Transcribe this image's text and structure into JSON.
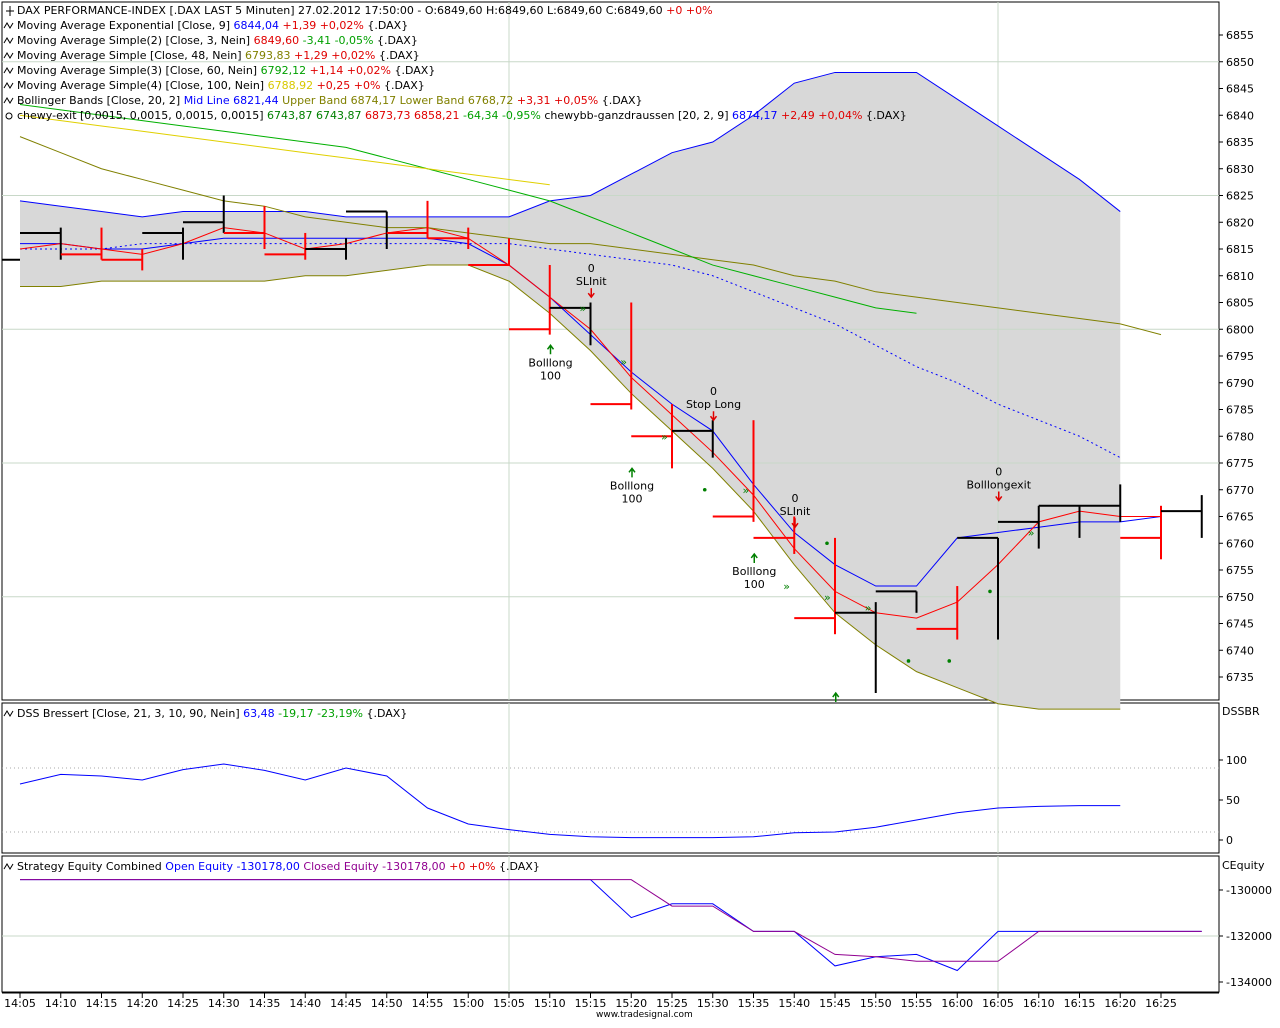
{
  "footer": {
    "credit": "www.tradesignal.com"
  },
  "panels": {
    "price": {
      "legend": [
        {
          "icon": "cursor-icon",
          "parts": [
            {
              "t": "DAX PERFORMANCE-INDEX [.DAX LAST 5 Minuten] 27.02.2012 17:50:00 - O:6849,60 H:6849,60 L:6849,60 C:6849,60 ",
              "c": "#000000"
            },
            {
              "t": "+0 +0%",
              "c": "#e00000"
            }
          ]
        },
        {
          "icon": "wave-icon",
          "parts": [
            {
              "t": "Moving Average Exponential [Close, 9] ",
              "c": "#000000"
            },
            {
              "t": "6844,04",
              "c": "#0000ff"
            },
            {
              "t": " +1,39 +0,02% ",
              "c": "#e00000"
            },
            {
              "t": "{.DAX}",
              "c": "#000000"
            }
          ]
        },
        {
          "icon": "wave-icon",
          "parts": [
            {
              "t": "Moving Average Simple(2) [Close, 3, Nein] ",
              "c": "#000000"
            },
            {
              "t": "6849,60",
              "c": "#e00000"
            },
            {
              "t": " -3,41 -0,05% ",
              "c": "#00a000"
            },
            {
              "t": "{.DAX}",
              "c": "#000000"
            }
          ]
        },
        {
          "icon": "wave-icon",
          "parts": [
            {
              "t": "Moving Average Simple [Close, 48, Nein] ",
              "c": "#000000"
            },
            {
              "t": "6793,83",
              "c": "#808000"
            },
            {
              "t": " +1,29 +0,02% ",
              "c": "#e00000"
            },
            {
              "t": "{.DAX}",
              "c": "#000000"
            }
          ]
        },
        {
          "icon": "wave-icon",
          "parts": [
            {
              "t": "Moving Average Simple(3) [Close, 60, Nein] ",
              "c": "#000000"
            },
            {
              "t": "6792,12",
              "c": "#00a000"
            },
            {
              "t": " +1,14 +0,02% ",
              "c": "#e00000"
            },
            {
              "t": "{.DAX}",
              "c": "#000000"
            }
          ]
        },
        {
          "icon": "wave-icon",
          "parts": [
            {
              "t": "Moving Average Simple(4) [Close, 100, Nein] ",
              "c": "#000000"
            },
            {
              "t": "6788,92",
              "c": "#d8c800"
            },
            {
              "t": " +0,25 +0% ",
              "c": "#e00000"
            },
            {
              "t": "{.DAX}",
              "c": "#000000"
            }
          ]
        },
        {
          "icon": "wave-icon",
          "parts": [
            {
              "t": "Bollinger Bands [Close, 20, 2] ",
              "c": "#000000"
            },
            {
              "t": "Mid Line 6821,44",
              "c": "#0000ff"
            },
            {
              "t": " Upper Band 6874,17",
              "c": "#808000"
            },
            {
              "t": " Lower Band 6768,72",
              "c": "#808000"
            },
            {
              "t": " +3,31 +0,05% ",
              "c": "#e00000"
            },
            {
              "t": "{.DAX}",
              "c": "#000000"
            }
          ]
        },
        {
          "icon": "strategy-icon",
          "parts": [
            {
              "t": "chewy-exit [0,0015, 0,0015, 0,0015, 0,0015] ",
              "c": "#000000"
            },
            {
              "t": "6743,87 6743,87",
              "c": "#008000"
            },
            {
              "t": " 6873,73 6858,21",
              "c": "#e00000"
            },
            {
              "t": " -64,34 -0,95%",
              "c": "#00a000"
            },
            {
              "t": "     ",
              "c": "#000000"
            },
            {
              "t": "chewybb-ganzdraussen [20, 2, 9] ",
              "c": "#000000"
            },
            {
              "t": "6874,17",
              "c": "#0000ff"
            },
            {
              "t": " +2,49 +0,04% ",
              "c": "#e00000"
            },
            {
              "t": "{.DAX}",
              "c": "#000000"
            }
          ]
        }
      ]
    },
    "dss": {
      "label": "DSSBR",
      "legend": [
        {
          "icon": "wave-icon",
          "parts": [
            {
              "t": "DSS Bressert [Close, 21, 3, 10, 90, Nein] ",
              "c": "#000000"
            },
            {
              "t": "63,48",
              "c": "#0000ff"
            },
            {
              "t": " -19,17 -23,19% ",
              "c": "#00a000"
            },
            {
              "t": "{.DAX}",
              "c": "#000000"
            }
          ]
        }
      ]
    },
    "equity": {
      "label": "CEquity",
      "legend": [
        {
          "icon": "wave-icon",
          "parts": [
            {
              "t": "Strategy Equity Combined ",
              "c": "#000000"
            },
            {
              "t": "Open Equity -130178,00",
              "c": "#0000ff"
            },
            {
              "t": " Closed Equity -130178,00",
              "c": "#900090"
            },
            {
              "t": " +0 +0% ",
              "c": "#e00000"
            },
            {
              "t": "{.DAX}",
              "c": "#000000"
            }
          ]
        }
      ]
    }
  },
  "chart_data": [
    {
      "type": "line",
      "panel": "price",
      "ylim": [
        6732,
        6858
      ],
      "yticks": [
        6735,
        6740,
        6745,
        6750,
        6755,
        6760,
        6765,
        6770,
        6775,
        6780,
        6785,
        6790,
        6795,
        6800,
        6805,
        6810,
        6815,
        6820,
        6825,
        6830,
        6835,
        6840,
        6845,
        6850,
        6855
      ],
      "x_labels": [
        "14:05",
        "14:10",
        "14:15",
        "14:20",
        "14:25",
        "14:30",
        "14:35",
        "14:40",
        "14:45",
        "14:50",
        "14:55",
        "15:00",
        "15:05",
        "15:10",
        "15:15",
        "15:20",
        "15:25",
        "15:30",
        "15:35",
        "15:40",
        "15:45",
        "15:50",
        "15:55",
        "16:00",
        "16:05",
        "16:10",
        "16:15",
        "16:20",
        "16:25"
      ],
      "bars": [
        {
          "o": 6813,
          "h": 6813,
          "l": 6813,
          "c": 6813
        },
        {
          "o": 6813,
          "h": 6819,
          "l": 6813,
          "c": 6818
        },
        {
          "o": 6818,
          "h": 6819,
          "l": 6813,
          "c": 6814
        },
        {
          "o": 6814,
          "h": 6815,
          "l": 6811,
          "c": 6813
        },
        {
          "o": 6813,
          "h": 6819,
          "l": 6813,
          "c": 6818
        },
        {
          "o": 6818,
          "h": 6825,
          "l": 6818,
          "c": 6820
        },
        {
          "o": 6820,
          "h": 6823,
          "l": 6815,
          "c": 6818
        },
        {
          "o": 6818,
          "h": 6818,
          "l": 6813,
          "c": 6814
        },
        {
          "o": 6814,
          "h": 6817,
          "l": 6813,
          "c": 6815
        },
        {
          "o": 6815,
          "h": 6822,
          "l": 6815,
          "c": 6822
        },
        {
          "o": 6822,
          "h": 6824,
          "l": 6817,
          "c": 6818
        },
        {
          "o": 6818,
          "h": 6819,
          "l": 6815,
          "c": 6817
        },
        {
          "o": 6817,
          "h": 6817,
          "l": 6812,
          "c": 6812
        },
        {
          "o": 6812,
          "h": 6812,
          "l": 6799,
          "c": 6800
        },
        {
          "o": 6800,
          "h": 6805,
          "l": 6797,
          "c": 6804
        },
        {
          "o": 6804,
          "h": 6805,
          "l": 6785,
          "c": 6786
        },
        {
          "o": 6786,
          "h": 6786,
          "l": 6774,
          "c": 6780
        },
        {
          "o": 6780,
          "h": 6783,
          "l": 6776,
          "c": 6781
        },
        {
          "o": 6781,
          "h": 6783,
          "l": 6764,
          "c": 6765
        },
        {
          "o": 6765,
          "h": 6765,
          "l": 6758,
          "c": 6761
        },
        {
          "o": 6761,
          "h": 6761,
          "l": 6743,
          "c": 6746
        },
        {
          "o": 6746,
          "h": 6749,
          "l": 6732,
          "c": 6747
        },
        {
          "o": 6747,
          "h": 6751,
          "l": 6747,
          "c": 6751
        },
        {
          "o": 6751,
          "h": 6752,
          "l": 6742,
          "c": 6744
        },
        {
          "o": 6744,
          "h": 6761,
          "l": 6742,
          "c": 6761
        },
        {
          "o": 6761,
          "h": 6767,
          "l": 6759,
          "c": 6764
        },
        {
          "o": 6764,
          "h": 6767,
          "l": 6761,
          "c": 6767
        },
        {
          "o": 6767,
          "h": 6771,
          "l": 6764,
          "c": 6767
        },
        {
          "o": 6767,
          "h": 6767,
          "l": 6757,
          "c": 6761
        },
        {
          "o": 6761,
          "h": 6769,
          "l": 6761,
          "c": 6766
        }
      ],
      "series": [
        {
          "key": "upper",
          "color": "#0000ff",
          "values": [
            6824,
            6823,
            6822,
            6821,
            6822,
            6822,
            6822,
            6822,
            6821,
            6821,
            6821,
            6821,
            6821,
            6824,
            6825,
            6829,
            6833,
            6835,
            6840,
            6846,
            6848,
            6848,
            6848,
            6843,
            6838,
            6833,
            6828,
            6822
          ]
        },
        {
          "key": "lower",
          "color": "#808000",
          "values": [
            6808,
            6808,
            6809,
            6809,
            6809,
            6809,
            6809,
            6810,
            6810,
            6811,
            6812,
            6812,
            6809,
            6803,
            6796,
            6788,
            6781,
            6774,
            6766,
            6756,
            6747,
            6741,
            6736,
            6733,
            6730,
            6729,
            6729,
            6729
          ]
        },
        {
          "key": "mid",
          "color": "#0000ff",
          "dash": "2,3",
          "values": [
            6815,
            6815,
            6815,
            6816,
            6816,
            6816,
            6816,
            6816,
            6816,
            6816,
            6816,
            6816,
            6816,
            6815,
            6814,
            6813,
            6812,
            6810,
            6807,
            6804,
            6801,
            6797,
            6793,
            6790,
            6786,
            6783,
            6780,
            6776
          ]
        },
        {
          "key": "ema",
          "color": "#0000ff",
          "values": [
            6816,
            6816,
            6815,
            6815,
            6816,
            6817,
            6817,
            6817,
            6817,
            6817,
            6817,
            6816,
            6812,
            6806,
            6799,
            6792,
            6786,
            6781,
            6771,
            6762,
            6756,
            6752,
            6752,
            6761,
            6762,
            6763,
            6764,
            6764,
            6765
          ]
        },
        {
          "key": "sma3",
          "color": "#ff0000",
          "values": [
            6815,
            6816,
            6815,
            6814,
            6816,
            6819,
            6818,
            6815,
            6816,
            6818,
            6819,
            6817,
            6812,
            6806,
            6800,
            6791,
            6784,
            6777,
            6769,
            6759,
            6751,
            6747,
            6746,
            6749,
            6756,
            6764,
            6766,
            6765,
            6765
          ]
        },
        {
          "key": "sma48",
          "color": "#808000",
          "values": [
            6836,
            6833,
            6830,
            6828,
            6826,
            6824,
            6823,
            6821,
            6820,
            6819,
            6819,
            6818,
            6817,
            6816,
            6816,
            6815,
            6814,
            6813,
            6812,
            6810,
            6809,
            6807,
            6806,
            6805,
            6804,
            6803,
            6802,
            6801,
            6799
          ]
        },
        {
          "key": "sma60",
          "color": "#00b000",
          "values": [
            6842,
            6841,
            6840,
            6839,
            6838,
            6837,
            6836,
            6835,
            6834,
            6832,
            6830,
            6828,
            6826,
            6824,
            6821,
            6818,
            6815,
            6812,
            6810,
            6808,
            6806,
            6804,
            6803
          ]
        },
        {
          "key": "sma100",
          "color": "#e0d000",
          "values": [
            6840,
            6839,
            6838,
            6837,
            6836,
            6835,
            6834,
            6833,
            6832,
            6831,
            6830,
            6829,
            6828,
            6827
          ]
        }
      ],
      "annotations": [
        {
          "bar": 15,
          "y": 6806,
          "dir": "down",
          "lines": [
            "0",
            "SLInit"
          ]
        },
        {
          "bar": 14,
          "y": 6797,
          "dir": "up",
          "lines": [
            "Bolllong",
            "100"
          ]
        },
        {
          "bar": 16,
          "y": 6774,
          "dir": "up",
          "lines": [
            "Bolllong",
            "100"
          ]
        },
        {
          "bar": 18,
          "y": 6783,
          "dir": "down",
          "lines": [
            "0",
            "Stop Long"
          ]
        },
        {
          "bar": 20,
          "y": 6763,
          "dir": "down",
          "lines": [
            "0",
            "SLInit"
          ]
        },
        {
          "bar": 19,
          "y": 6758,
          "dir": "up",
          "lines": [
            "Bolllong",
            "100"
          ]
        },
        {
          "bar": 21,
          "y": 6732,
          "dir": "up",
          "lines": []
        },
        {
          "bar": 25,
          "y": 6768,
          "dir": "down",
          "lines": [
            "0",
            "Bolllongexit"
          ]
        }
      ],
      "dots": [
        {
          "bar": 14,
          "y": 6804,
          "shape": "chevron"
        },
        {
          "bar": 15,
          "y": 6794,
          "shape": "chevron"
        },
        {
          "bar": 16,
          "y": 6780,
          "shape": "chevron"
        },
        {
          "bar": 17,
          "y": 6770,
          "shape": "dot"
        },
        {
          "bar": 18,
          "y": 6770,
          "shape": "chevron"
        },
        {
          "bar": 19,
          "y": 6752,
          "shape": "chevron"
        },
        {
          "bar": 20,
          "y": 6750,
          "shape": "chevron"
        },
        {
          "bar": 21,
          "y": 6748,
          "shape": "chevron"
        },
        {
          "bar": 22,
          "y": 6738,
          "shape": "dot"
        },
        {
          "bar": 23,
          "y": 6738,
          "shape": "dot"
        },
        {
          "bar": 24,
          "y": 6751,
          "shape": "dot"
        },
        {
          "bar": 25,
          "y": 6762,
          "shape": "chevron"
        },
        {
          "bar": 20,
          "y": 6760,
          "shape": "dot"
        }
      ]
    },
    {
      "type": "line",
      "panel": "dss",
      "ylim": [
        -8,
        115
      ],
      "yticks": [
        0,
        50,
        100
      ],
      "series": [
        {
          "name": "DSS Bressert",
          "color": "#0000ff",
          "values": [
            70,
            82,
            80,
            75,
            88,
            95,
            87,
            75,
            90,
            80,
            40,
            20,
            13,
            7,
            4,
            3,
            3,
            3,
            4,
            9,
            10,
            16,
            25,
            34,
            40,
            42,
            43,
            43
          ]
        }
      ]
    },
    {
      "type": "line",
      "panel": "equity",
      "ylim": [
        -134400,
        -129400
      ],
      "yticks": [
        -130000,
        -132000,
        -134000
      ],
      "series": [
        {
          "name": "Open Equity",
          "color": "#0000ff",
          "values": [
            -129550,
            -129550,
            -129550,
            -129550,
            -129550,
            -129550,
            -129550,
            -129550,
            -129550,
            -129550,
            -129550,
            -129550,
            -129550,
            -129550,
            -129550,
            -131200,
            -130600,
            -130600,
            -131800,
            -131800,
            -133300,
            -132900,
            -132800,
            -133500,
            -131800,
            -131800,
            -131800,
            -131800,
            -131800,
            -131800
          ]
        },
        {
          "name": "Closed Equity",
          "color": "#900090",
          "values": [
            -129550,
            -129550,
            -129550,
            -129550,
            -129550,
            -129550,
            -129550,
            -129550,
            -129550,
            -129550,
            -129550,
            -129550,
            -129550,
            -129550,
            -129550,
            -129550,
            -130700,
            -130700,
            -131800,
            -131800,
            -132800,
            -132900,
            -133100,
            -133100,
            -133100,
            -131800,
            -131800,
            -131800,
            -131800,
            -131800
          ]
        }
      ]
    }
  ]
}
